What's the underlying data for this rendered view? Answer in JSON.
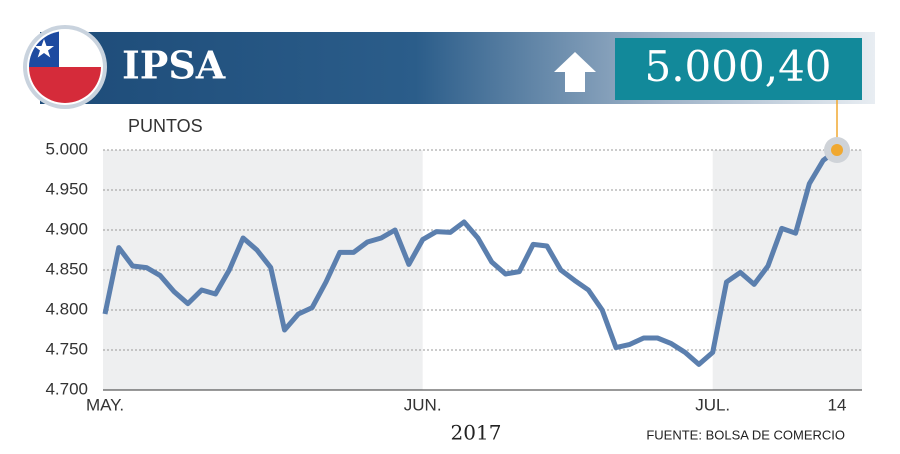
{
  "chart_data": {
    "type": "line",
    "title": "IPSA",
    "current_value": "5.000,40",
    "y_label": "PUNTOS",
    "x_label": "2017",
    "source": "FUENTE: BOLSA DE COMERCIO",
    "categories": [
      "MAY.",
      null,
      null,
      null,
      null,
      null,
      null,
      null,
      null,
      null,
      null,
      null,
      null,
      null,
      null,
      null,
      null,
      null,
      null,
      null,
      null,
      null,
      null,
      "JUN.",
      null,
      null,
      null,
      null,
      null,
      null,
      null,
      null,
      null,
      null,
      null,
      null,
      null,
      null,
      null,
      null,
      null,
      null,
      null,
      null,
      "JUL.",
      null,
      null,
      null,
      null,
      null,
      null,
      null,
      null,
      "14"
    ],
    "series": [
      {
        "name": "IPSA",
        "color": "#5b7fae",
        "values": [
          4795,
          4878,
          4855,
          4853,
          4843,
          4823,
          4808,
          4825,
          4820,
          4850,
          4890,
          4875,
          4853,
          4775,
          4795,
          4803,
          4835,
          4872,
          4872,
          4885,
          4890,
          4900,
          4857,
          4888,
          4898,
          4897,
          4910,
          4890,
          4860,
          4845,
          4848,
          4882,
          4880,
          4850,
          4837,
          4825,
          4800,
          4753,
          4757,
          4765,
          4765,
          4758,
          4747,
          4732,
          4747,
          4835,
          4847,
          4832,
          4855,
          4902,
          4896,
          4958,
          4987,
          5000
        ]
      }
    ],
    "ylim": [
      4700,
      5000
    ],
    "yticks": [
      {
        "value": 4700,
        "label": "4.700"
      },
      {
        "value": 4750,
        "label": "4.750"
      },
      {
        "value": 4800,
        "label": "4.800"
      },
      {
        "value": 4850,
        "label": "4.850"
      },
      {
        "value": 4900,
        "label": "4.900"
      },
      {
        "value": 4950,
        "label": "4.950"
      },
      {
        "value": 5000,
        "label": "5.000"
      }
    ],
    "grid": true,
    "highlight_color": "#f0a830"
  }
}
